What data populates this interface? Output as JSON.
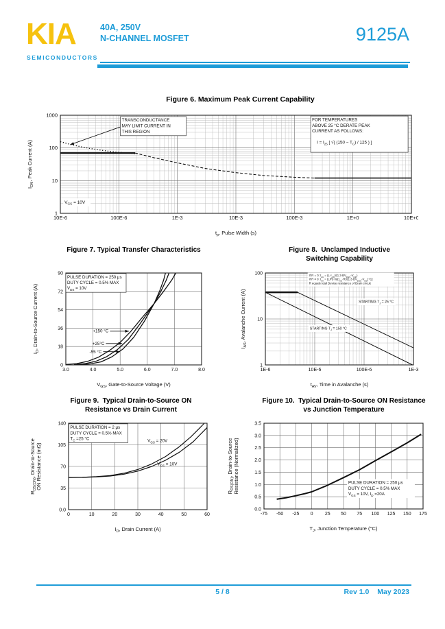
{
  "header": {
    "logo_text": "KIA",
    "logo_sub": "SEMICONDUCTORS",
    "part_line1": "40A, 250V",
    "part_line2": "N-CHANNEL MOSFET",
    "part_number": "9125A",
    "accent_color": "#1d9cd8",
    "logo_color": "#f6c20e"
  },
  "footer": {
    "page_indicator": "5 / 8",
    "revision": "Rev 1.0",
    "date": "May 2023"
  },
  "chart_data": [
    {
      "id": "figure-6",
      "type": "line",
      "title": [
        "Figure 6. Maximum Peak Current Capability"
      ],
      "xlabel": "t~p~, Pulse Width (s)",
      "ylabel": [
        "I~DM~, Peak Current (A)"
      ],
      "xscale": "log",
      "yscale": "log",
      "xlim": [
        1e-05,
        10
      ],
      "ylim": [
        1,
        1000
      ],
      "xticks": [
        {
          "v": 1e-05,
          "l": "10E-6"
        },
        {
          "v": 0.0001,
          "l": "100E-6"
        },
        {
          "v": 0.001,
          "l": "1E-3"
        },
        {
          "v": 0.01,
          "l": "10E-3"
        },
        {
          "v": 0.1,
          "l": "100E-3"
        },
        {
          "v": 1,
          "l": "1E+0"
        },
        {
          "v": 10,
          "l": "10E+0"
        }
      ],
      "yticks": [
        {
          "v": 1,
          "l": "1"
        },
        {
          "v": 10,
          "l": "10"
        },
        {
          "v": 100,
          "l": "100"
        },
        {
          "v": 1000,
          "l": "1000"
        }
      ],
      "size": [
        580,
        200
      ],
      "margin": {
        "l": 58,
        "t": 16,
        "r": 10,
        "b": 41
      },
      "tick_size": 7.5,
      "ylabel_x": 16,
      "series": [
        {
          "name": "transconductance limited region",
          "dash": "1.3 2.6",
          "w": 1.4,
          "points": [
            [
              1e-05,
              155
            ],
            [
              1.5e-05,
              128
            ],
            [
              2.3e-05,
              108
            ],
            [
              3.5e-05,
              94
            ],
            [
              5.5e-05,
              83
            ],
            [
              9e-05,
              74
            ],
            [
              0.00015,
              69
            ],
            [
              0.0002,
              66
            ]
          ]
        },
        {
          "name": "peak current limit 70A",
          "w": 2.2,
          "points": [
            [
              1e-05,
              70
            ],
            [
              0.00019,
              70
            ]
          ]
        },
        {
          "name": "peak current derating",
          "dash": "4 2.5",
          "w": 1.1,
          "points": [
            [
              0.00019,
              70
            ],
            [
              0.0004,
              50
            ],
            [
              0.001,
              35
            ],
            [
              0.003,
              23.5
            ],
            [
              0.01,
              17.5
            ],
            [
              0.03,
              14.3
            ],
            [
              0.1,
              12.7
            ],
            [
              0.22,
              12
            ]
          ]
        },
        {
          "name": "continuous limit 12A",
          "w": 1.6,
          "points": [
            [
              0.22,
              12
            ],
            [
              10,
              12
            ]
          ]
        }
      ],
      "notes": [
        {
          "fx": 0.175,
          "fy": 0.02,
          "size": 6.3,
          "bg": true,
          "border": true,
          "w": 92,
          "lines": [
            "TRANSCONDUCTANCE",
            "MAY LIMIT CURRENT IN",
            "THIS REGION"
          ]
        },
        {
          "fx": 0.717,
          "fy": 0.015,
          "size": 6.3,
          "bg": true,
          "border": true,
          "w": 138,
          "lines": [
            "FOR TEMPERATURES",
            "ABOVE 25 °C DERATE PEAK",
            "CURRENT AS FOLLOWS:",
            "",
            "    I  =  I~25~ [ √( (150 − T~C~) / 125 ) ]",
            ""
          ]
        },
        {
          "fx": 0.012,
          "fy": 0.855,
          "size": 6.5,
          "bg": true,
          "w": 36,
          "lines": [
            "V~GS~ = 10V"
          ]
        }
      ],
      "arrows": [
        {
          "from": [
            0.17,
            0.12
          ],
          "to": [
            0.028,
            0.3
          ]
        }
      ]
    },
    {
      "id": "figure-7",
      "type": "line",
      "title": [
        "Figure 7. Typical Transfer Characteristics"
      ],
      "xlabel": "V~GS~, Gate-to-Source Voltage (V)",
      "ylabel": [
        "I~D~, Drain-to-Source Current (A)"
      ],
      "xscale": "linear",
      "yscale": "linear",
      "xlim": [
        3,
        8
      ],
      "ylim": [
        0,
        90
      ],
      "xticks": [
        {
          "v": 3,
          "l": "3.0"
        },
        {
          "v": 4,
          "l": "4.0"
        },
        {
          "v": 5,
          "l": "5.0"
        },
        {
          "v": 6,
          "l": "6.0"
        },
        {
          "v": 7,
          "l": "7.0"
        },
        {
          "v": 8,
          "l": "8.0"
        }
      ],
      "yticks": [
        {
          "v": 0,
          "l": "0"
        },
        {
          "v": 18,
          "l": "18"
        },
        {
          "v": 36,
          "l": "36"
        },
        {
          "v": 54,
          "l": "54"
        },
        {
          "v": 72,
          "l": "72"
        },
        {
          "v": 90,
          "l": "90"
        }
      ],
      "size": [
        280,
        209
      ],
      "margin": {
        "l": 56,
        "t": 27,
        "r": 26,
        "b": 48
      },
      "ylabel_x": 14,
      "series": [
        {
          "name": "TJ = +150 °C",
          "w": 1.3,
          "points": [
            [
              3.0,
              0.4
            ],
            [
              3.4,
              1.3
            ],
            [
              3.8,
              3.5
            ],
            [
              4.2,
              7.5
            ],
            [
              4.6,
              14
            ],
            [
              5.0,
              22
            ],
            [
              5.4,
              33
            ],
            [
              5.8,
              46
            ],
            [
              6.25,
              60
            ],
            [
              6.6,
              72
            ],
            [
              6.9,
              83
            ],
            [
              7.05,
              90
            ]
          ]
        },
        {
          "name": "TJ = +25 °C",
          "w": 1.3,
          "points": [
            [
              3.3,
              0.3
            ],
            [
              3.7,
              1.2
            ],
            [
              4.1,
              3.5
            ],
            [
              4.5,
              8
            ],
            [
              4.9,
              15
            ],
            [
              5.3,
              25
            ],
            [
              5.7,
              39
            ],
            [
              6.25,
              60
            ],
            [
              6.5,
              72
            ],
            [
              6.7,
              83
            ],
            [
              6.8,
              90
            ]
          ]
        },
        {
          "name": "TJ = -55 °C",
          "w": 1.3,
          "points": [
            [
              3.5,
              0.2
            ],
            [
              3.9,
              1.0
            ],
            [
              4.3,
              3.0
            ],
            [
              4.7,
              8
            ],
            [
              5.1,
              15.5
            ],
            [
              5.5,
              27
            ],
            [
              5.9,
              43
            ],
            [
              6.25,
              60
            ],
            [
              6.45,
              72
            ],
            [
              6.6,
              83
            ],
            [
              6.67,
              90
            ]
          ]
        }
      ],
      "notes": [
        {
          "fx": 0.01,
          "fy": 0.012,
          "size": 6.2,
          "bg": true,
          "border": true,
          "w": 84,
          "lines": [
            "PULSE DURATION = 250 μs",
            "DUTY CYCLE = 0.5% MAX",
            "V~DS~ = 10V"
          ]
        },
        {
          "fx": 0.315,
          "fy": 0.6,
          "size": 6.3,
          "align": "end",
          "lines": [
            "+150 °C"
          ]
        },
        {
          "fx": 0.285,
          "fy": 0.735,
          "size": 6.3,
          "align": "end",
          "lines": [
            "+25°C"
          ]
        },
        {
          "fx": 0.265,
          "fy": 0.825,
          "size": 6.3,
          "align": "end",
          "lines": [
            "-55 °C"
          ]
        }
      ],
      "arrows": [
        {
          "from": [
            0.325,
            0.633
          ],
          "to": [
            0.465,
            0.633
          ]
        },
        {
          "from": [
            0.295,
            0.767
          ],
          "to": [
            0.415,
            0.767
          ]
        },
        {
          "from": [
            0.275,
            0.856
          ],
          "to": [
            0.4,
            0.856
          ]
        }
      ]
    },
    {
      "id": "figure-8",
      "type": "line",
      "title": [
        "Figure 8.  Unclamped Inductive",
        "Switching Capability"
      ],
      "xlabel": "t~AV~, Time in Avalanche (s)",
      "ylabel": [
        "I~AS~, Avalanche Current (A)"
      ],
      "xscale": "log",
      "yscale": "log",
      "xlim": [
        1e-06,
        0.001
      ],
      "ylim": [
        1,
        100
      ],
      "xticks": [
        {
          "v": 1e-06,
          "l": "1E-6"
        },
        {
          "v": 1e-05,
          "l": "10E-6"
        },
        {
          "v": 0.0001,
          "l": "100E-6"
        },
        {
          "v": 0.001,
          "l": "1E-3"
        }
      ],
      "yticks": [
        {
          "v": 1,
          "l": "1"
        },
        {
          "v": 10,
          "l": "10"
        },
        {
          "v": 100,
          "l": "100"
        }
      ],
      "size": [
        290,
        198
      ],
      "margin": {
        "l": 42,
        "t": 14,
        "r": 32,
        "b": 50
      },
      "ylabel_x": 12,
      "series": [
        {
          "name": "peak avalanche limit",
          "w": 2.4,
          "points": [
            [
              1e-06,
              38
            ],
            [
              4.5e-06,
              38
            ]
          ]
        },
        {
          "name": "STARTING TJ = 25 °C",
          "w": 1.0,
          "points": [
            [
              4.5e-06,
              38
            ],
            [
              0.001,
              2.35
            ]
          ]
        },
        {
          "name": "STARTING TJ = 150 °C",
          "w": 1.0,
          "points": [
            [
              1e-06,
              38
            ],
            [
              0.00096,
              1.0
            ]
          ]
        }
      ],
      "notes": [
        {
          "fx": 0.295,
          "fy": 0.005,
          "size": 4.3,
          "bg": true,
          "w": 122,
          "lines": [
            "If R = 0:  t~AV~ = (L·I~AS~)/(1.3·BV~DSS~-V~DD~)",
            "If R ≠ 0:  t~AV~ = (L/R) ln[(I~AS~·R)/(1.3·BV~DSS~-V~DD~)+1]",
            "R equals total Device resistance of Drain circuit"
          ]
        },
        {
          "fx": 0.63,
          "fy": 0.285,
          "size": 5.2,
          "bg": true,
          "w": 52,
          "lines": [
            "STARTING T~J~ = 25 °C"
          ]
        },
        {
          "fx": 0.3,
          "fy": 0.575,
          "size": 5.2,
          "bg": true,
          "w": 56,
          "lines": [
            "STARTING T~J~ = 150 °C"
          ]
        }
      ],
      "arrows": []
    },
    {
      "id": "figure-9",
      "type": "line",
      "title": [
        "Figure 9.  Typical Drain-to-Source ON",
        "Resistance vs Drain Current"
      ],
      "xlabel": "I~D~, Drain Current (A)",
      "ylabel": [
        "R~DS(ON)~, Drain-to-Source",
        "ON Resistance (mΩ)"
      ],
      "xscale": "linear",
      "yscale": "linear",
      "xlim": [
        0,
        60
      ],
      "ylim": [
        0,
        140
      ],
      "xticks": [
        {
          "v": 0,
          "l": "0"
        },
        {
          "v": 10,
          "l": "10"
        },
        {
          "v": 20,
          "l": "20"
        },
        {
          "v": 30,
          "l": "30"
        },
        {
          "v": 40,
          "l": "40"
        },
        {
          "v": 50,
          "l": "50"
        },
        {
          "v": 60,
          "l": "60"
        }
      ],
      "yticks": [
        {
          "v": 0,
          "l": "0.0"
        },
        {
          "v": 35,
          "l": "35"
        },
        {
          "v": 70,
          "l": "70"
        },
        {
          "v": 105,
          "l": "105"
        },
        {
          "v": 140,
          "l": "140"
        }
      ],
      "size": [
        280,
        200
      ],
      "margin": {
        "l": 58,
        "t": 13,
        "r": 20,
        "b": 61
      },
      "ylabel_x": 8,
      "series": [
        {
          "name": "VGS = 20V",
          "w": 1.2,
          "points": [
            [
              0,
              52
            ],
            [
              6,
              52.4
            ],
            [
              12,
              53.4
            ],
            [
              18,
              55.2
            ],
            [
              24,
              59
            ],
            [
              30,
              65
            ],
            [
              36,
              74
            ],
            [
              42,
              86
            ],
            [
              48,
              102
            ],
            [
              53,
              118
            ],
            [
              57,
              133
            ],
            [
              58.8,
              140
            ]
          ]
        },
        {
          "name": "VGS = 10V",
          "w": 1.2,
          "points": [
            [
              0,
              52
            ],
            [
              6,
              52.2
            ],
            [
              12,
              53
            ],
            [
              18,
              54.5
            ],
            [
              24,
              57.5
            ],
            [
              30,
              62.5
            ],
            [
              36,
              70
            ],
            [
              42,
              80
            ],
            [
              48,
              93
            ],
            [
              54,
              110
            ],
            [
              60,
              133
            ]
          ]
        }
      ],
      "notes": [
        {
          "fx": 0.012,
          "fy": 0.015,
          "size": 6.2,
          "bg": true,
          "border": true,
          "w": 82,
          "lines": [
            "PULSE DURATION = 2 μs",
            "DUTY CYCLE = 0.5% MAX",
            "T~C~ =25 °C"
          ]
        },
        {
          "fx": 0.57,
          "fy": 0.17,
          "size": 6.3,
          "lines": [
            "V~GS~ = 20V"
          ]
        },
        {
          "fx": 0.64,
          "fy": 0.44,
          "size": 6.3,
          "lines": [
            "V~GS~ = 10V"
          ]
        }
      ],
      "arrows": []
    },
    {
      "id": "figure-10",
      "type": "line",
      "title": [
        "Figure 10.  Typical Drain-to-Source ON Resistance",
        "vs Junction Temperature"
      ],
      "xlabel": "T~J~, Junction Temperature (°C)",
      "ylabel": [
        "R~DS(ON)~, Drain-to-Source",
        "Resistance (Normalized)"
      ],
      "xscale": "linear",
      "yscale": "linear",
      "xlim": [
        -75,
        175
      ],
      "ylim": [
        0,
        3.5
      ],
      "xticks": [
        {
          "v": -75,
          "l": "-75"
        },
        {
          "v": -50,
          "l": "-50"
        },
        {
          "v": -25,
          "l": "-25"
        },
        {
          "v": 0,
          "l": "0"
        },
        {
          "v": 25,
          "l": "25"
        },
        {
          "v": 50,
          "l": "50"
        },
        {
          "v": 75,
          "l": "75"
        },
        {
          "v": 100,
          "l": "100"
        },
        {
          "v": 125,
          "l": "125"
        },
        {
          "v": 150,
          "l": "150"
        },
        {
          "v": 175,
          "l": "175"
        }
      ],
      "yticks": [
        {
          "v": 0,
          "l": "0.0"
        },
        {
          "v": 0.5,
          "l": "0.5"
        },
        {
          "v": 1,
          "l": "1.0"
        },
        {
          "v": 1.5,
          "l": "1.5"
        },
        {
          "v": 2,
          "l": "2.0"
        },
        {
          "v": 2.5,
          "l": "2.5"
        },
        {
          "v": 3,
          "l": "3.0"
        },
        {
          "v": 3.5,
          "l": "3.5"
        }
      ],
      "size": [
        305,
        200
      ],
      "margin": {
        "l": 55,
        "t": 13,
        "r": 18,
        "b": 62
      },
      "ylabel_x": 8,
      "series": [
        {
          "name": "normalized RDS(ON)",
          "w": 2.0,
          "points": [
            [
              -55,
              0.4
            ],
            [
              -40,
              0.46
            ],
            [
              -25,
              0.54
            ],
            [
              -10,
              0.63
            ],
            [
              0,
              0.7
            ],
            [
              25,
              0.97
            ],
            [
              50,
              1.28
            ],
            [
              75,
              1.6
            ],
            [
              100,
              1.97
            ],
            [
              125,
              2.33
            ],
            [
              150,
              2.7
            ],
            [
              172,
              3.05
            ]
          ]
        }
      ],
      "notes": [
        {
          "fx": 0.53,
          "fy": 0.66,
          "size": 6.2,
          "bg": true,
          "w": 95,
          "lines": [
            "PULSE DURATION = 250 μs",
            "DUTY CYCLE = 0.5% MAX",
            "V~GS~ = 10V, I~D~ =20A"
          ]
        }
      ],
      "arrows": []
    }
  ]
}
